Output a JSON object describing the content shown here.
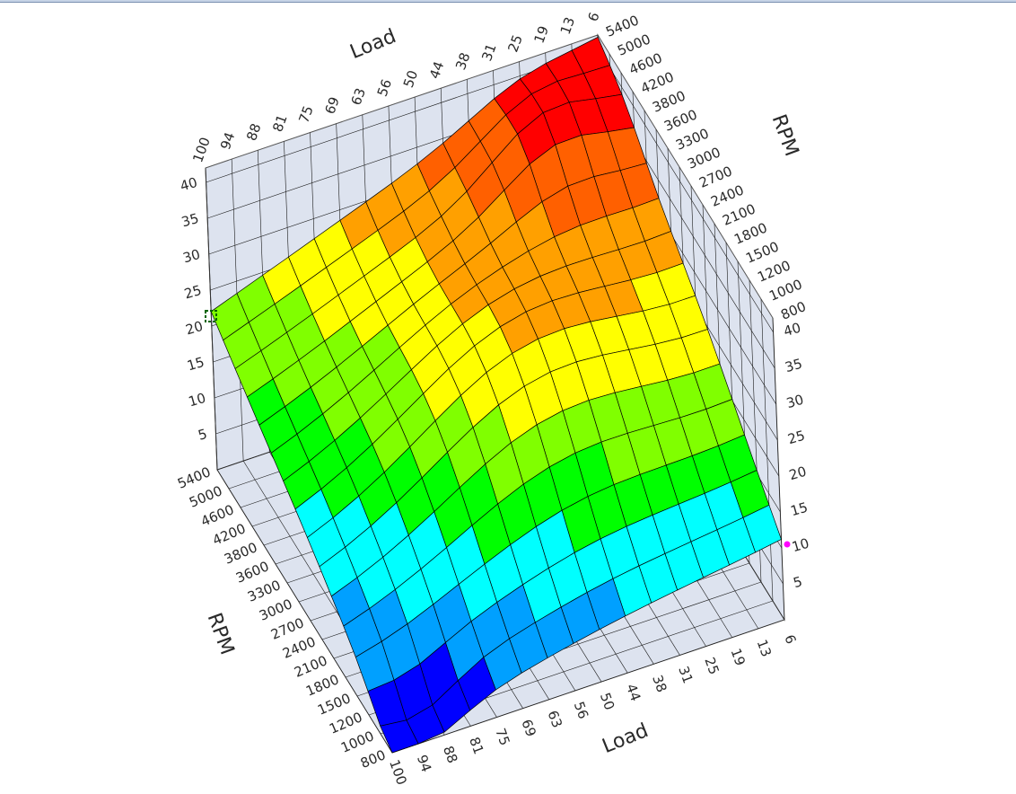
{
  "chart_data": {
    "type": "surface",
    "title": "",
    "x_axis": {
      "label": "Load",
      "ticks": [
        "100",
        "94",
        "88",
        "81",
        "75",
        "69",
        "63",
        "56",
        "50",
        "44",
        "38",
        "31",
        "25",
        "19",
        "13",
        "6"
      ]
    },
    "y_axis": {
      "label": "RPM",
      "ticks": [
        "800",
        "1000",
        "1200",
        "1500",
        "1800",
        "2100",
        "2400",
        "2700",
        "3000",
        "3300",
        "3600",
        "3800",
        "4200",
        "4600",
        "5000",
        "5400"
      ]
    },
    "z_axis": {
      "label": "",
      "ticks": [
        "5",
        "10",
        "15",
        "20",
        "25",
        "30",
        "35",
        "40"
      ],
      "range": [
        0,
        42
      ]
    },
    "color_scale": [
      "#0000ff",
      "#00a0ff",
      "#00ffff",
      "#00ff00",
      "#80ff00",
      "#ffff00",
      "#ffa000",
      "#ff6000",
      "#ff0000"
    ],
    "corner_values": {
      "load_100_rpm_800": 1,
      "load_100_rpm_5400": 22,
      "load_6_rpm_800": 11,
      "load_6_rpm_5400": 41
    },
    "peak_region": "low load (6-25), high RPM (4600-5400), values ~38-41",
    "grid_size": [
      16,
      16
    ]
  }
}
